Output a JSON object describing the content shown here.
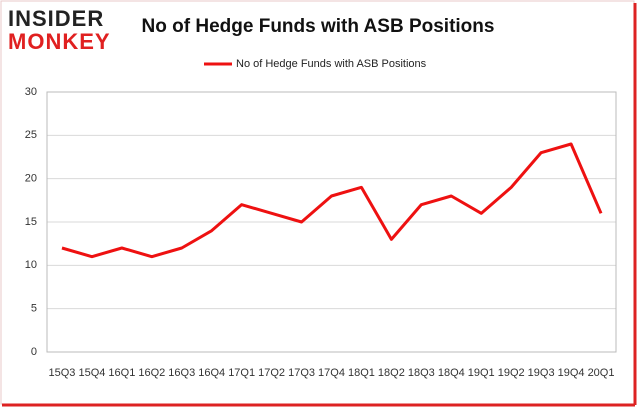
{
  "logo": {
    "line1": "INSIDER",
    "line2": "MONKEY"
  },
  "chart_data": {
    "type": "line",
    "title": "No of Hedge Funds with ASB Positions",
    "categories": [
      "15Q3",
      "15Q4",
      "16Q1",
      "16Q2",
      "16Q3",
      "16Q4",
      "17Q1",
      "17Q2",
      "17Q3",
      "17Q4",
      "18Q1",
      "18Q2",
      "18Q3",
      "18Q4",
      "19Q1",
      "19Q2",
      "19Q3",
      "19Q4",
      "20Q1"
    ],
    "series": [
      {
        "name": "No of Hedge Funds with ASB Positions",
        "color": "#ee1111",
        "values": [
          12,
          11,
          12,
          11,
          12,
          14,
          17,
          16,
          15,
          18,
          19,
          13,
          17,
          18,
          16,
          19,
          23,
          24,
          16
        ]
      }
    ],
    "ylim": [
      0,
      30
    ],
    "yticks": [
      0,
      5,
      10,
      15,
      20,
      25,
      30
    ],
    "grid": true,
    "legend": "top"
  }
}
